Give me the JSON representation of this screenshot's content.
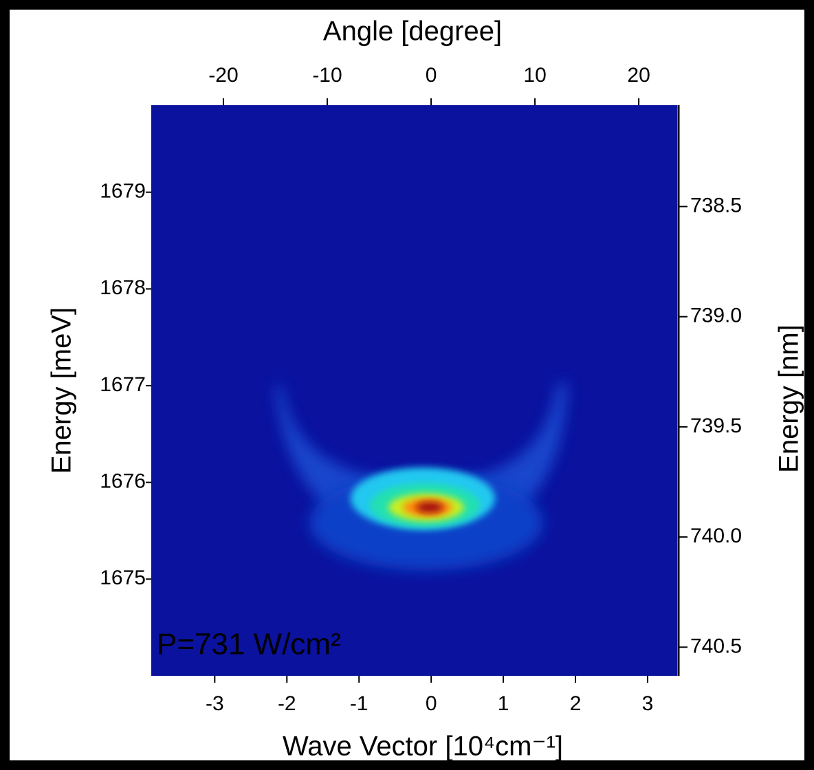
{
  "chart_data": {
    "type": "heatmap",
    "x_label": "Wave Vector  [10⁴cm⁻¹]",
    "x2_label": "Angle [degree]",
    "y_label": "Energy [meV]",
    "y2_label": "Energy [nm]",
    "annotation": "P=731 W/cm²",
    "xlim": [
      -3.88,
      3.41
    ],
    "xticks": [
      -3,
      -2,
      -1,
      0,
      1,
      2,
      3
    ],
    "x2lim": [
      -26.95,
      23.7
    ],
    "x2ticks": [
      -20,
      -10,
      0,
      10,
      20
    ],
    "ylim": [
      1674.0,
      1679.9
    ],
    "yticks": [
      1675,
      1676,
      1677,
      1678,
      1679
    ],
    "y2lim": [
      740.63,
      738.04
    ],
    "y2ticks": [
      {
        "value": 738.5,
        "label": "738.5"
      },
      {
        "value": 739.0,
        "label": "739.0"
      },
      {
        "value": 739.5,
        "label": "739.5"
      },
      {
        "value": 740.0,
        "label": "740.0"
      },
      {
        "value": 740.5,
        "label": "740.5"
      }
    ],
    "annotation_color": "#ff5a10"
  }
}
